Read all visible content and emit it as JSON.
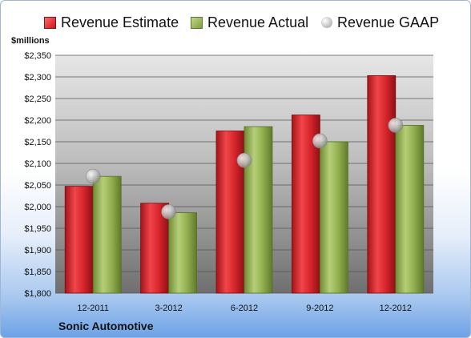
{
  "chart_data": {
    "type": "bar",
    "title": "",
    "ylabel": "$millions",
    "xlabel": "",
    "categories": [
      "12-2011",
      "3-2012",
      "6-2012",
      "9-2012",
      "12-2012"
    ],
    "series": [
      {
        "name": "Revenue Estimate",
        "kind": "bar",
        "color": "#d42128",
        "values": [
          2047,
          2008,
          2175,
          2212,
          2303
        ]
      },
      {
        "name": "Revenue Actual",
        "kind": "bar",
        "color": "#8fac4a",
        "values": [
          2070,
          1986,
          2185,
          2150,
          2188
        ]
      },
      {
        "name": "Revenue GAAP",
        "kind": "marker",
        "color": "#bdbdbd",
        "values": [
          2070,
          1988,
          2107,
          2152,
          2188
        ]
      }
    ],
    "yticks": [
      "$1,800",
      "$1,850",
      "$1,900",
      "$1,950",
      "$2,000",
      "$2,050",
      "$2,100",
      "$2,150",
      "$2,200",
      "$2,250",
      "$2,300",
      "$2,350"
    ],
    "ylim": [
      1800,
      2350
    ],
    "grid": true,
    "legend_position": "top"
  },
  "caption": {
    "unit": "$millions",
    "company": "Sonic Automotive"
  }
}
